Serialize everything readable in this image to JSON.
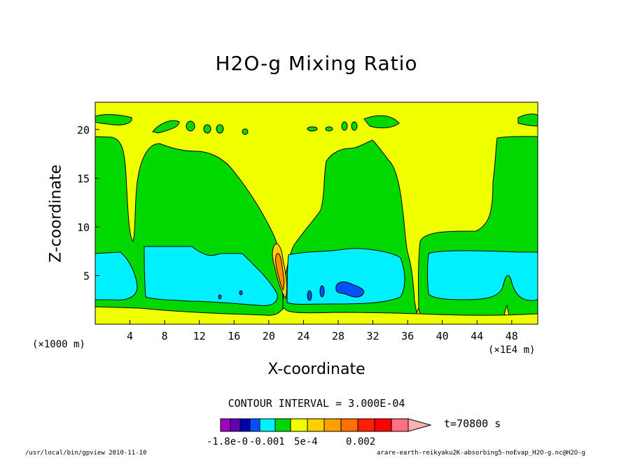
{
  "title": "H2O-g Mixing Ratio",
  "colors": {
    "background_plot": "#f0ff00",
    "green": "#00d800",
    "cyan": "#00f0ff",
    "blue": "#0050ff",
    "dark_blue": "#0000d0",
    "yellow2": "#ffd000",
    "orange": "#ff9000",
    "orange_dark": "#ff6000"
  },
  "chart_data": {
    "type": "contour",
    "title": "H2O-g Mixing Ratio",
    "xlabel": "X-coordinate",
    "ylabel": "Z-coordinate",
    "x_unit_label": "(×1000 m)",
    "x_unit_label2": "(×1E4 m)",
    "xlim": [
      0,
      51
    ],
    "ylim": [
      0,
      22.8
    ],
    "x_ticks": [
      4,
      8,
      12,
      16,
      20,
      24,
      28,
      32,
      36,
      40,
      44,
      48
    ],
    "y_ticks": [
      5,
      10,
      15,
      20
    ],
    "contour_interval_text": "CONTOUR INTERVAL = 3.000E-04",
    "time_text": "t=70800 s",
    "colorbar": {
      "colors": [
        "#a000c0",
        "#6000b0",
        "#0000b0",
        "#0050ff",
        "#00f0ff",
        "#00d800",
        "#f0ff00",
        "#ffd000",
        "#ffa000",
        "#ff7000",
        "#ff2000",
        "#ff0000",
        "#ff7080",
        "#ffb0b0"
      ],
      "labels": [
        "-1.8e-0",
        "-0.001",
        "5e-4",
        "0.002"
      ]
    }
  },
  "footer": {
    "left": "/usr/local/bin/gpview  2010-11-10",
    "right": "arare-earth-reikyaku2K-absorbing5-noEvap_H2O-g.nc@H2O-g"
  }
}
